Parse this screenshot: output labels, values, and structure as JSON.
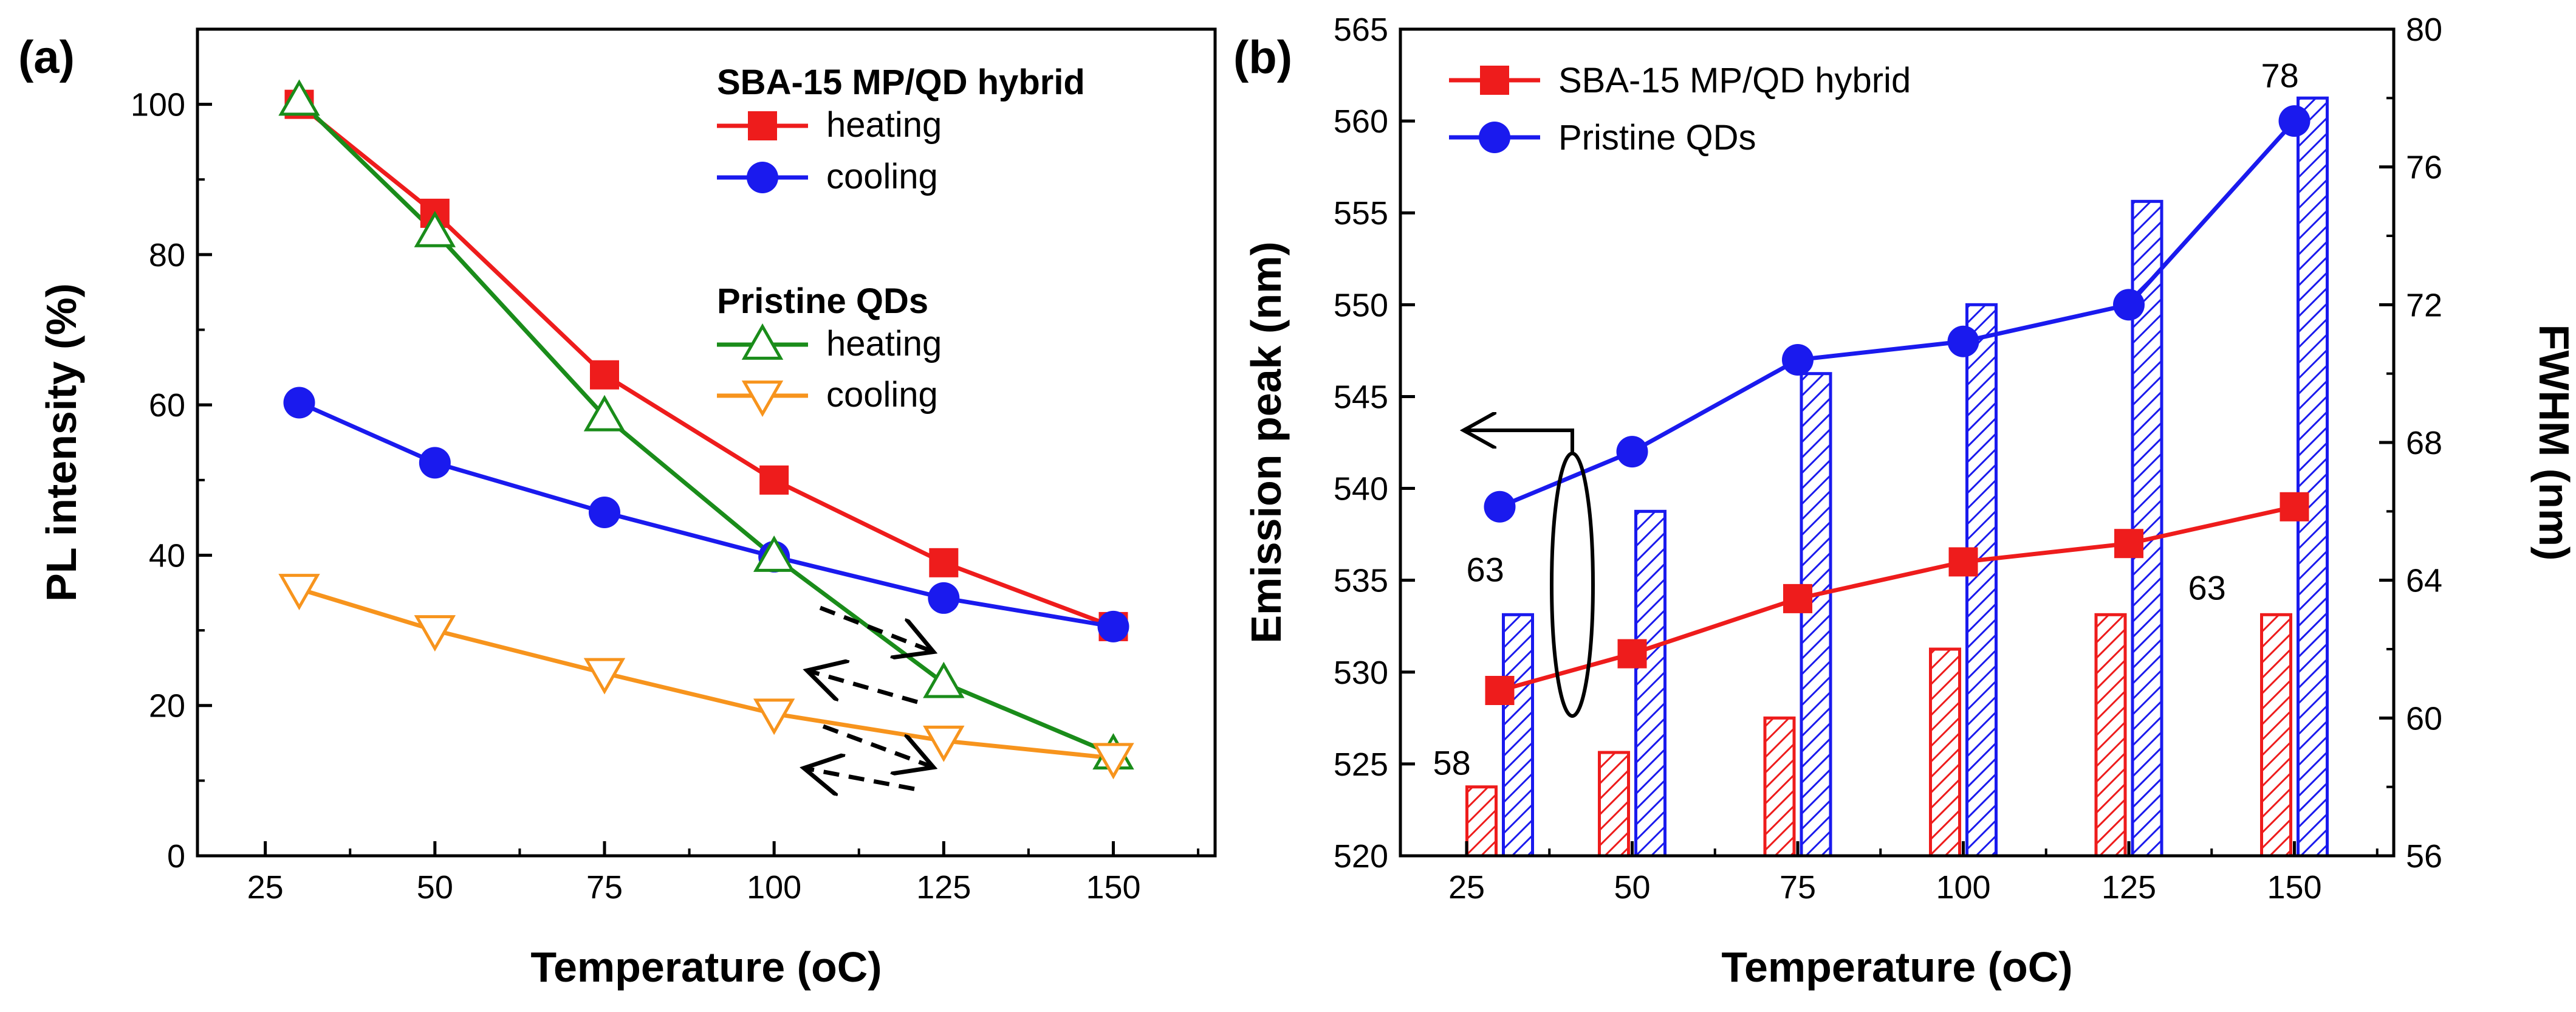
{
  "panels": {
    "a": {
      "label": "(a)"
    },
    "b": {
      "label": "(b)"
    }
  },
  "chart_data": [
    {
      "type": "line",
      "panel": "a",
      "title": "",
      "xlabel": "Temperature (oC)",
      "ylabel": "PL intensity (%)",
      "xlim": [
        15,
        165
      ],
      "ylim": [
        0,
        110
      ],
      "xticks": [
        25,
        50,
        75,
        100,
        125,
        150
      ],
      "yticks": [
        0,
        20,
        40,
        60,
        80,
        100
      ],
      "legend_groups": [
        {
          "title": "SBA-15 MP/QD hybrid",
          "entries": [
            "heating",
            "cooling"
          ]
        },
        {
          "title": "Pristine QDs",
          "entries": [
            "heating",
            "cooling"
          ]
        }
      ],
      "series": [
        {
          "name": "heating",
          "group": "SBA-15 MP/QD hybrid",
          "color": "#ee1c1c",
          "marker": "square",
          "x": [
            30,
            50,
            75,
            100,
            125,
            150
          ],
          "y": [
            100,
            85.5,
            64,
            50,
            39,
            30.5
          ]
        },
        {
          "name": "cooling",
          "group": "SBA-15 MP/QD hybrid",
          "color": "#1a1aee",
          "marker": "circle",
          "x": [
            30,
            50,
            75,
            100,
            125,
            150
          ],
          "y": [
            60.3,
            52.3,
            45.7,
            39.8,
            34.3,
            30.5
          ]
        },
        {
          "name": "heating",
          "group": "Pristine QDs",
          "color": "#1a8c1a",
          "marker": "triangle-up",
          "x": [
            30,
            50,
            75,
            100,
            125,
            150
          ],
          "y": [
            100.5,
            83,
            58.5,
            39.8,
            23,
            13.5
          ]
        },
        {
          "name": "cooling",
          "group": "Pristine QDs",
          "color": "#f7941d",
          "marker": "triangle-down",
          "x": [
            30,
            50,
            75,
            100,
            125,
            150
          ],
          "y": [
            35.5,
            30,
            24.3,
            18.9,
            15.3,
            13
          ]
        }
      ],
      "annotations": [
        "dashed arrows indicating heating and cooling direction"
      ]
    },
    {
      "type": "line",
      "panel": "b",
      "title": "",
      "xlabel": "Temperature (oC)",
      "ylabel": "Emission peak (nm)",
      "ylabel_right": "FWHM (nm)",
      "xlim": [
        15,
        165
      ],
      "ylim": [
        520,
        565
      ],
      "ylim_right": [
        56,
        80
      ],
      "xticks": [
        25,
        50,
        75,
        100,
        125,
        150
      ],
      "yticks": [
        520,
        525,
        530,
        535,
        540,
        545,
        550,
        555,
        560,
        565
      ],
      "yticks_right": [
        56,
        60,
        64,
        68,
        72,
        76,
        80
      ],
      "series": [
        {
          "name": "SBA-15 MP/QD hybrid",
          "color": "#ee1c1c",
          "marker": "square",
          "axis": "left",
          "x": [
            30,
            50,
            75,
            100,
            125,
            150
          ],
          "y": [
            529,
            531,
            534,
            536,
            537,
            539
          ]
        },
        {
          "name": "Pristine QDs",
          "color": "#1a1aee",
          "marker": "circle",
          "axis": "left",
          "x": [
            30,
            50,
            75,
            100,
            125,
            150
          ],
          "y": [
            539,
            542,
            547,
            548,
            550,
            560
          ]
        }
      ],
      "bar_series": [
        {
          "name": "SBA-15 MP/QD hybrid FWHM",
          "color": "#ee1c1c",
          "axis": "right",
          "x": [
            30,
            50,
            75,
            100,
            125,
            150
          ],
          "values": [
            58,
            59,
            60,
            62,
            63,
            63
          ]
        },
        {
          "name": "Pristine QDs FWHM",
          "color": "#1a1aee",
          "axis": "right",
          "x": [
            30,
            50,
            75,
            100,
            125,
            150
          ],
          "values": [
            63,
            66,
            70,
            72,
            75,
            78
          ]
        }
      ],
      "data_labels": [
        {
          "text": "58",
          "series": "SBA-15 MP/QD hybrid FWHM",
          "x": 30
        },
        {
          "text": "63",
          "series": "Pristine QDs FWHM",
          "x": 30
        },
        {
          "text": "63",
          "series": "SBA-15 MP/QD hybrid FWHM",
          "x": 150
        },
        {
          "text": "78",
          "series": "Pristine QDs FWHM",
          "x": 150
        }
      ]
    }
  ]
}
